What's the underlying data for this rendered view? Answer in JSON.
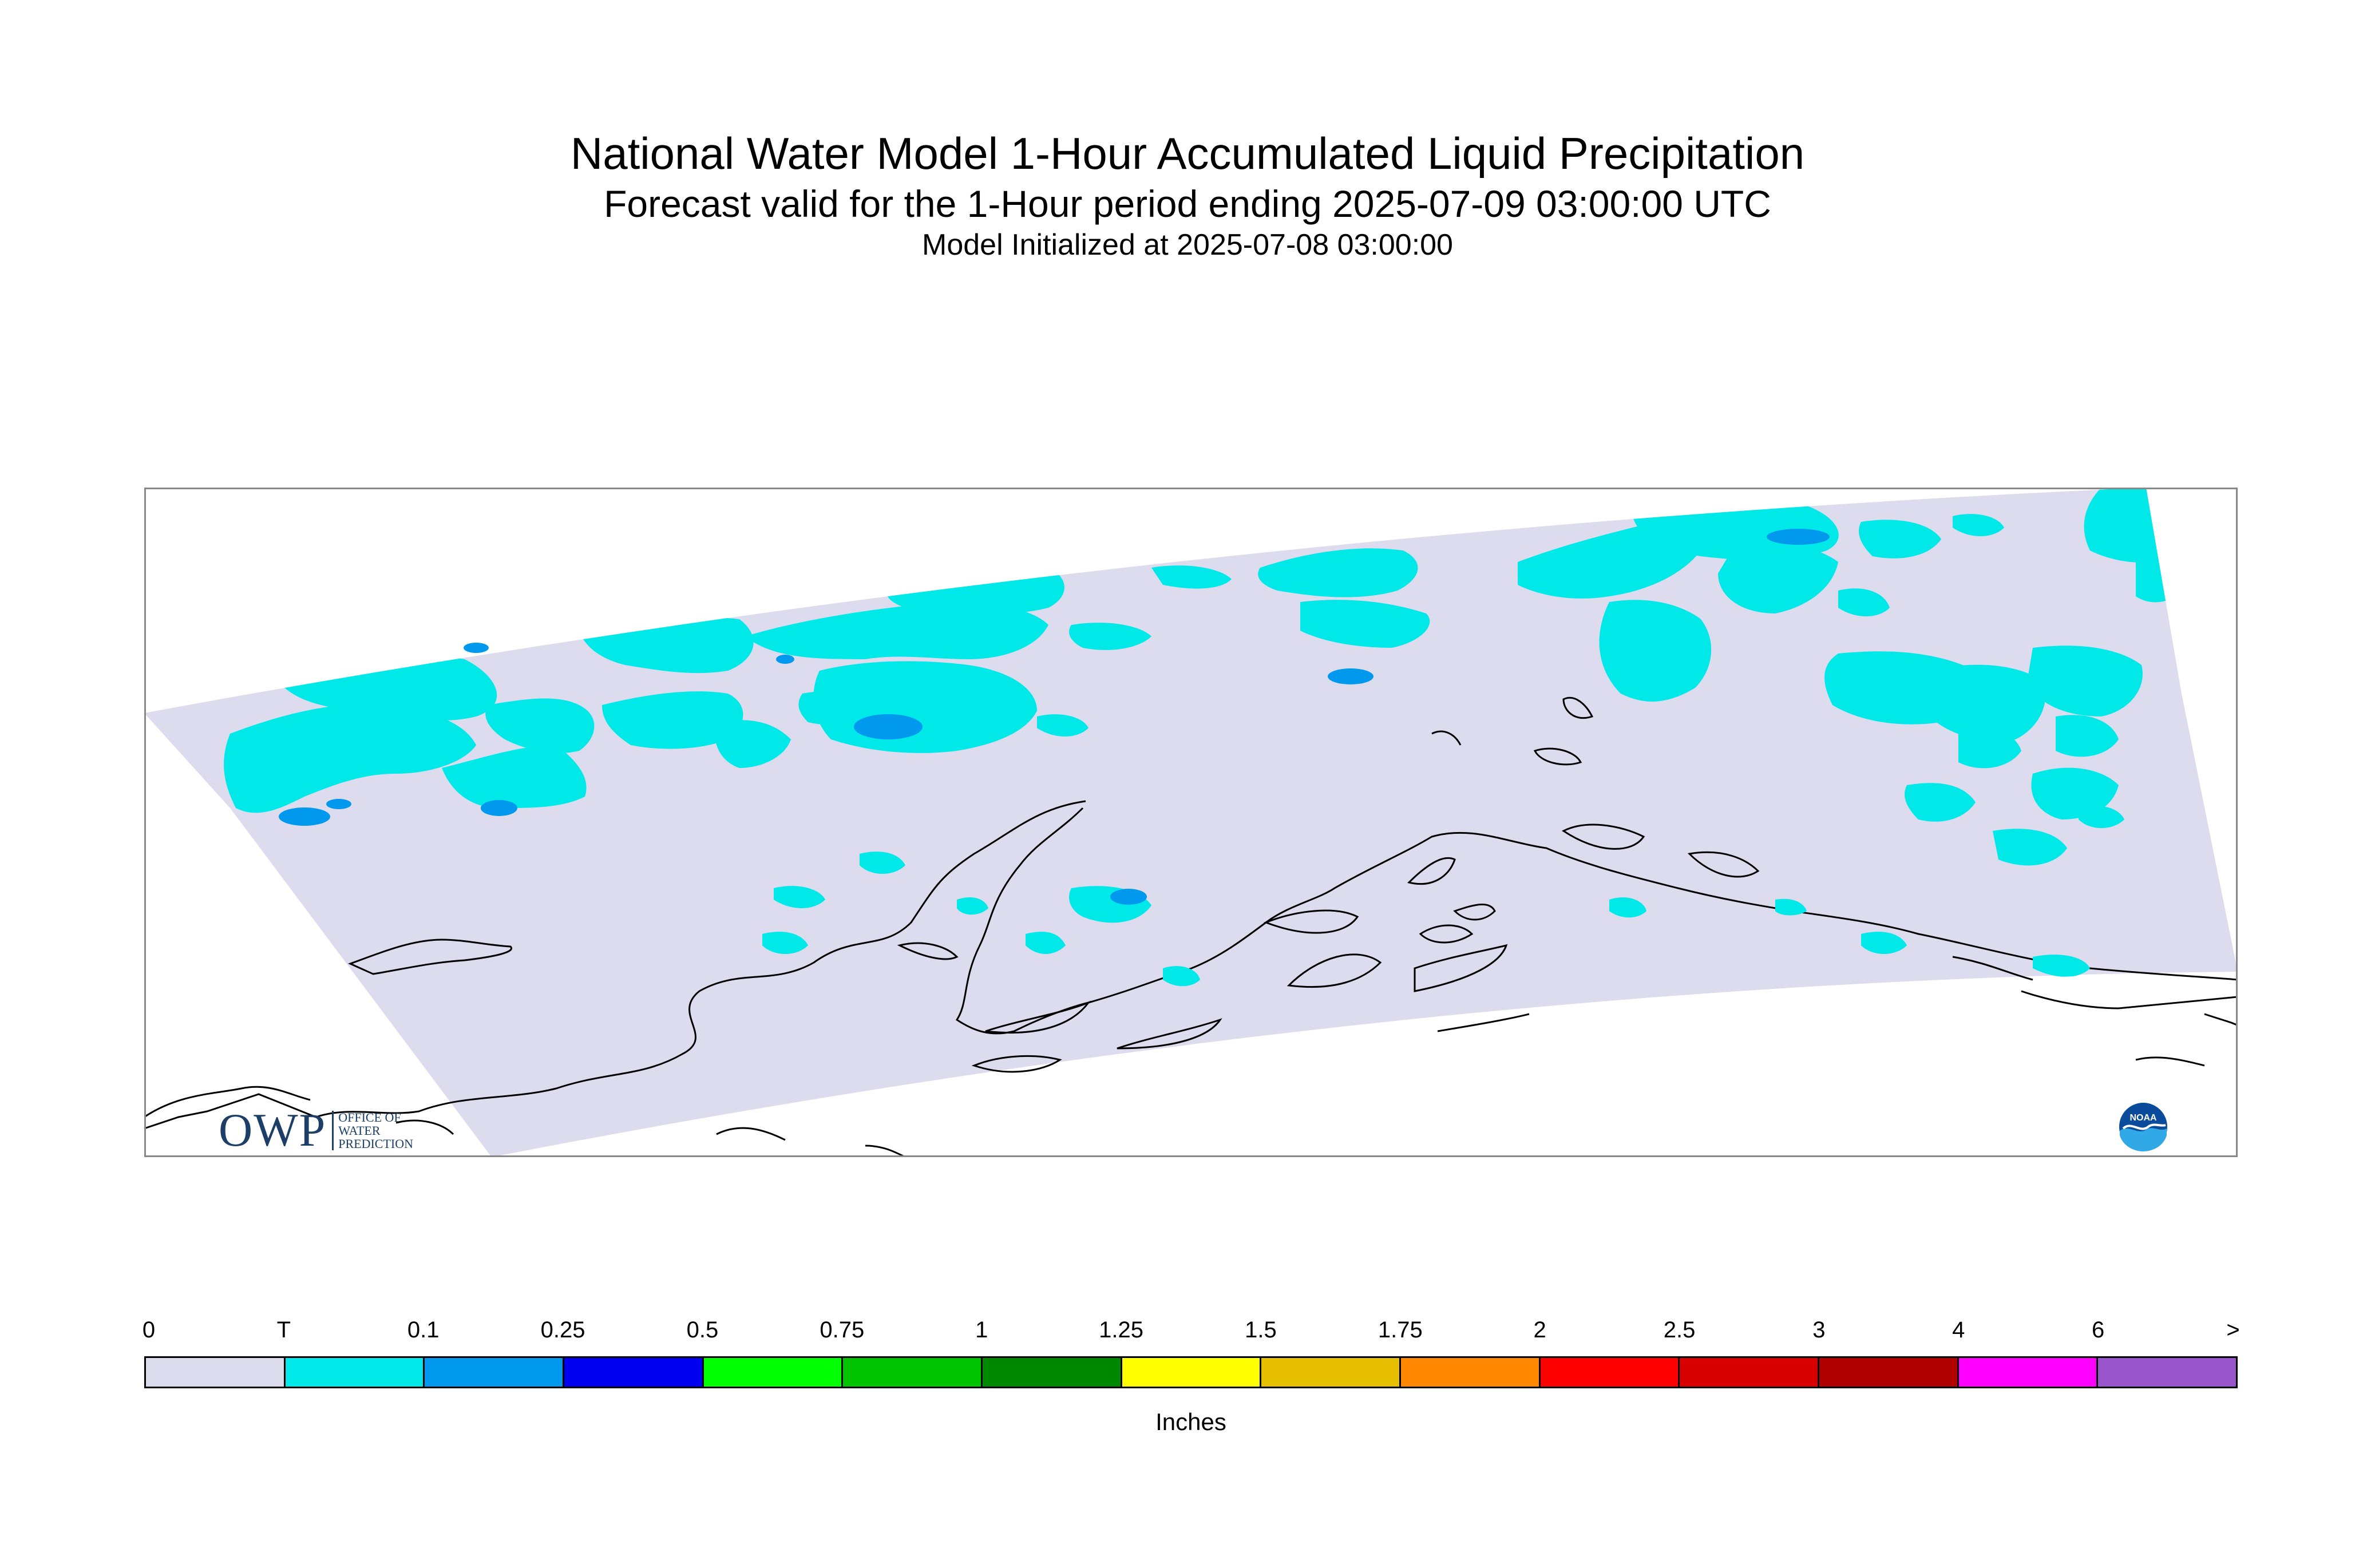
{
  "title": {
    "line1": "National Water Model 1-Hour Accumulated Liquid Precipitation",
    "line2": "Forecast valid for the 1-Hour period ending 2025-07-09 03:00:00 UTC",
    "line3": "Model Initialized at 2025-07-08 03:00:00"
  },
  "logos": {
    "owp_big": "OWP",
    "owp_small": [
      "OFFICE OF",
      "WATER",
      "PREDICTION"
    ],
    "noaa": "NOAA"
  },
  "legend": {
    "tick_labels": [
      "0",
      "T",
      "0.1",
      "0.25",
      "0.5",
      "0.75",
      "1",
      "1.25",
      "1.5",
      "1.75",
      "2",
      "2.5",
      "3",
      "4",
      "6",
      ">"
    ],
    "colors": [
      "#dcdcee",
      "#00e8e8",
      "#0099ee",
      "#0000f0",
      "#00ff00",
      "#00c400",
      "#008800",
      "#ffff00",
      "#e6c000",
      "#ff8800",
      "#ff0000",
      "#d80000",
      "#b00000",
      "#ff00ff",
      "#9955cc"
    ],
    "units": "Inches"
  },
  "map": {
    "domain_color": "#dcdcee",
    "trace_color": "#00e8e8",
    "light_color": "#0099ee",
    "coast_color": "#000000"
  }
}
